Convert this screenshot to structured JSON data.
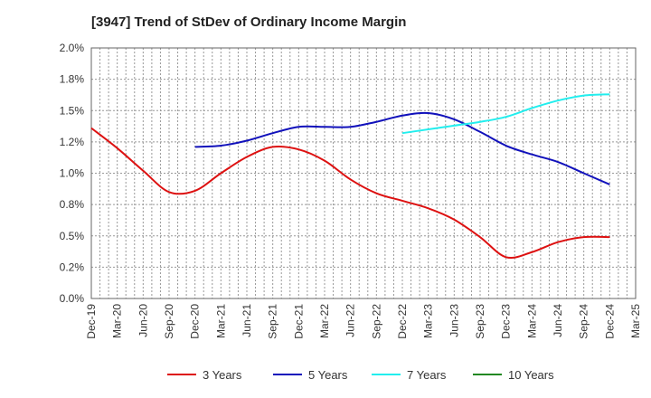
{
  "chart_data": {
    "type": "line",
    "title": "[3947]  Trend of StDev of Ordinary Income Margin",
    "xlabel": "",
    "ylabel": "",
    "ylim": [
      0,
      2.0
    ],
    "y_ticks": [
      "0.0%",
      "0.2%",
      "0.5%",
      "0.8%",
      "1.0%",
      "1.2%",
      "1.5%",
      "1.8%",
      "2.0%"
    ],
    "y_tick_values": [
      0,
      0.25,
      0.5,
      0.75,
      1.0,
      1.25,
      1.5,
      1.75,
      2.0
    ],
    "x": [
      "Dec-19",
      "Mar-20",
      "Jun-20",
      "Sep-20",
      "Dec-20",
      "Mar-21",
      "Jun-21",
      "Sep-21",
      "Dec-21",
      "Mar-22",
      "Jun-22",
      "Sep-22",
      "Dec-22",
      "Mar-23",
      "Jun-23",
      "Sep-23",
      "Dec-23",
      "Mar-24",
      "Jun-24",
      "Sep-24",
      "Dec-24",
      "Mar-25"
    ],
    "grid": true,
    "legend_position": "bottom",
    "series": [
      {
        "name": "3 Years",
        "color": "#dd1111",
        "values": [
          1.36,
          1.2,
          1.02,
          0.85,
          0.86,
          1.0,
          1.13,
          1.21,
          1.19,
          1.1,
          0.95,
          0.84,
          0.78,
          0.72,
          0.63,
          0.49,
          0.33,
          0.37,
          0.45,
          0.49,
          0.49,
          null
        ]
      },
      {
        "name": "5 Years",
        "color": "#1111bb",
        "values": [
          null,
          null,
          null,
          null,
          1.21,
          1.22,
          1.26,
          1.32,
          1.37,
          1.37,
          1.37,
          1.41,
          1.46,
          1.48,
          1.43,
          1.33,
          1.22,
          1.15,
          1.09,
          1.0,
          0.91,
          null
        ]
      },
      {
        "name": "7 Years",
        "color": "#22eeee",
        "values": [
          null,
          null,
          null,
          null,
          null,
          null,
          null,
          null,
          null,
          null,
          null,
          null,
          1.32,
          1.35,
          1.38,
          1.41,
          1.45,
          1.52,
          1.58,
          1.62,
          1.63,
          null
        ]
      },
      {
        "name": "10 Years",
        "color": "#228822",
        "values": [
          null,
          null,
          null,
          null,
          null,
          null,
          null,
          null,
          null,
          null,
          null,
          null,
          null,
          null,
          null,
          null,
          null,
          null,
          null,
          null,
          null,
          null
        ]
      }
    ]
  }
}
